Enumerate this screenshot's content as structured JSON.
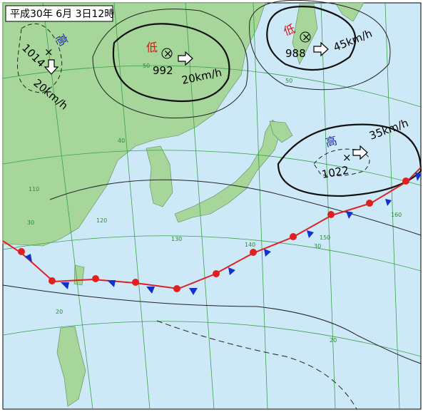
{
  "header": {
    "title": "平成30年 6月 3日12時"
  },
  "systems": [
    {
      "kind": "高",
      "pressure": 1014,
      "center": "×",
      "speed": "20km/h"
    },
    {
      "kind": "低",
      "pressure": 992,
      "center": "×",
      "speed": "20km/h"
    },
    {
      "kind": "低",
      "pressure": 988,
      "center": "×",
      "speed": "45km/h"
    },
    {
      "kind": "高",
      "pressure": 1022,
      "center": "×",
      "speed": "35km/h"
    }
  ],
  "grid_labels": {
    "latitudes": [
      "50",
      "40",
      "30",
      "20",
      "50",
      "30",
      "20"
    ],
    "longitudes": [
      "110",
      "120",
      "130",
      "140",
      "150",
      "160"
    ]
  }
}
